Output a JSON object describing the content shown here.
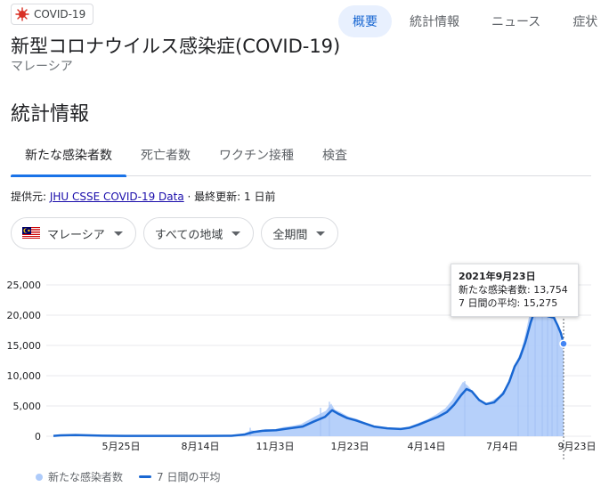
{
  "chip": {
    "label": "COVID-19",
    "icon": "virus-icon"
  },
  "top_tabs": [
    "概要",
    "統計情報",
    "ニュース",
    "症状"
  ],
  "header": {
    "title": "新型コロナウイルス感染症(COVID-19)",
    "subtitle": "マレーシア"
  },
  "section_title": "統計情報",
  "stat_tabs": [
    "新たな感染者数",
    "死亡者数",
    "ワクチン接種",
    "検査"
  ],
  "source": {
    "prefix": "提供元: ",
    "link": "JHU CSSE COVID-19 Data",
    "updated": " · 最終更新: 1 日前"
  },
  "filters": {
    "location": "マレーシア",
    "region": "すべての地域",
    "period": "全期間"
  },
  "colors": {
    "accent": "#1a73e8",
    "line": "#1967d2",
    "area": "#aecbfa"
  },
  "tooltip": {
    "date": "2021年9月23日",
    "new_cases": "新たな感染者数: 13,754",
    "avg": "7 日間の平均: 15,275"
  },
  "legend": {
    "daily": "新たな感染者数",
    "avg": "7 日間の平均"
  },
  "chart_data": {
    "type": "area",
    "y_ticks": [
      "25,000",
      "20,000",
      "15,000",
      "10,000",
      "5,000",
      "0"
    ],
    "x_ticks": [
      "5月25日",
      "8月14日",
      "11月3日",
      "1月23日",
      "4月14日",
      "7月4日",
      "9月23日"
    ],
    "ylim": [
      0,
      25000
    ],
    "grid": true,
    "legend_position": "bottom-left",
    "series": [
      {
        "name": "新たな感染者数",
        "type": "area"
      },
      {
        "name": "7 日間の平均",
        "type": "line"
      }
    ],
    "avg_points": [
      [
        0,
        50
      ],
      [
        8,
        150
      ],
      [
        25,
        200
      ],
      [
        55,
        100
      ],
      [
        80,
        60
      ],
      [
        110,
        50
      ],
      [
        140,
        50
      ],
      [
        170,
        60
      ],
      [
        200,
        80
      ],
      [
        215,
        300
      ],
      [
        225,
        700
      ],
      [
        235,
        900
      ],
      [
        250,
        1000
      ],
      [
        265,
        1300
      ],
      [
        280,
        1600
      ],
      [
        292,
        2400
      ],
      [
        305,
        3200
      ],
      [
        313,
        4300
      ],
      [
        320,
        3700
      ],
      [
        330,
        3000
      ],
      [
        340,
        2600
      ],
      [
        350,
        2100
      ],
      [
        360,
        1600
      ],
      [
        375,
        1300
      ],
      [
        390,
        1200
      ],
      [
        400,
        1400
      ],
      [
        410,
        1900
      ],
      [
        420,
        2500
      ],
      [
        432,
        3200
      ],
      [
        442,
        4000
      ],
      [
        450,
        5200
      ],
      [
        458,
        6800
      ],
      [
        464,
        7800
      ],
      [
        470,
        7400
      ],
      [
        478,
        6000
      ],
      [
        486,
        5300
      ],
      [
        495,
        5600
      ],
      [
        505,
        7000
      ],
      [
        512,
        9000
      ],
      [
        518,
        11500
      ],
      [
        524,
        13000
      ],
      [
        530,
        15500
      ],
      [
        536,
        18800
      ],
      [
        540,
        20500
      ],
      [
        546,
        20600
      ],
      [
        552,
        20000
      ],
      [
        556,
        19800
      ],
      [
        562,
        19600
      ],
      [
        566,
        18400
      ],
      [
        570,
        17000
      ],
      [
        573,
        15275
      ]
    ],
    "daily_points": [
      [
        0,
        0
      ],
      [
        8,
        150
      ],
      [
        25,
        220
      ],
      [
        55,
        120
      ],
      [
        80,
        70
      ],
      [
        110,
        60
      ],
      [
        140,
        60
      ],
      [
        170,
        80
      ],
      [
        200,
        100
      ],
      [
        215,
        500
      ],
      [
        222,
        1000
      ],
      [
        230,
        800
      ],
      [
        238,
        1200
      ],
      [
        248,
        1100
      ],
      [
        258,
        1500
      ],
      [
        268,
        1700
      ],
      [
        278,
        2000
      ],
      [
        288,
        2800
      ],
      [
        298,
        3600
      ],
      [
        306,
        4200
      ],
      [
        312,
        5400
      ],
      [
        316,
        4400
      ],
      [
        322,
        4000
      ],
      [
        332,
        3200
      ],
      [
        340,
        2900
      ],
      [
        348,
        2400
      ],
      [
        356,
        1900
      ],
      [
        366,
        1500
      ],
      [
        378,
        1300
      ],
      [
        390,
        1300
      ],
      [
        400,
        1600
      ],
      [
        410,
        2200
      ],
      [
        420,
        2800
      ],
      [
        430,
        3600
      ],
      [
        440,
        4600
      ],
      [
        448,
        6000
      ],
      [
        454,
        7500
      ],
      [
        460,
        9000
      ],
      [
        465,
        8400
      ],
      [
        470,
        7600
      ],
      [
        476,
        6000
      ],
      [
        484,
        5400
      ],
      [
        492,
        5800
      ],
      [
        500,
        6600
      ],
      [
        508,
        8000
      ],
      [
        514,
        10200
      ],
      [
        520,
        12200
      ],
      [
        526,
        14500
      ],
      [
        530,
        16800
      ],
      [
        534,
        19600
      ],
      [
        538,
        22000
      ],
      [
        542,
        24500
      ],
      [
        546,
        22800
      ],
      [
        550,
        21500
      ],
      [
        554,
        22500
      ],
      [
        558,
        21000
      ],
      [
        562,
        20500
      ],
      [
        565,
        19000
      ],
      [
        568,
        17500
      ],
      [
        571,
        15500
      ],
      [
        573,
        13754
      ]
    ],
    "daily_spikes": [
      [
        221,
        1400
      ],
      [
        300,
        4700
      ],
      [
        310,
        5700
      ],
      [
        462,
        9100
      ],
      [
        522,
        12600
      ],
      [
        533,
        17500
      ],
      [
        541,
        24900
      ],
      [
        549,
        22000
      ],
      [
        555,
        23000
      ],
      [
        560,
        20000
      ],
      [
        566,
        17800
      ]
    ]
  }
}
